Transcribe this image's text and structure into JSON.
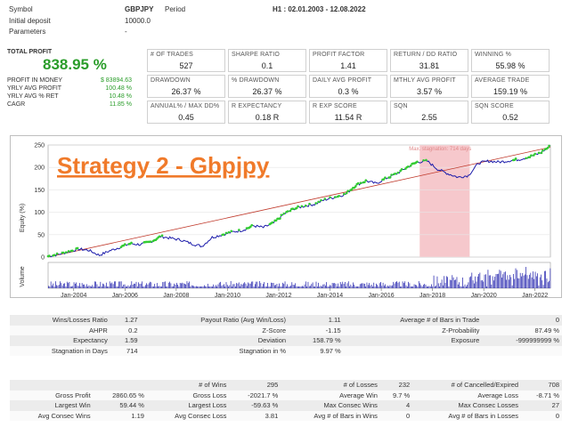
{
  "header": {
    "symbol_label": "Symbol",
    "symbol_value": "GBPJPY",
    "period_label": "Period",
    "period_value": "H1 : 02.01.2003 - 12.08.2022",
    "deposit_label": "Initial deposit",
    "deposit_value": "10000.0",
    "params_label": "Parameters",
    "params_value": "-"
  },
  "summary": {
    "total_profit_label": "TOTAL PROFIT",
    "total_profit_value": "838.95 %",
    "rows": [
      {
        "label": "PROFIT IN MONEY",
        "value": "$ 83894.63"
      },
      {
        "label": "YRLY AVG PROFIT",
        "value": "100.48 %"
      },
      {
        "label": "YRLY AVG % RET",
        "value": "10.48 %"
      },
      {
        "label": "CAGR",
        "value": "11.85 %"
      }
    ]
  },
  "metrics": [
    [
      {
        "title": "# OF TRADES",
        "value": "527"
      },
      {
        "title": "SHARPE RATIO",
        "value": "0.1"
      },
      {
        "title": "PROFIT FACTOR",
        "value": "1.41"
      },
      {
        "title": "RETURN / DD RATIO",
        "value": "31.81"
      },
      {
        "title": "WINNING %",
        "value": "55.98 %"
      }
    ],
    [
      {
        "title": "DRAWDOWN",
        "value": "26.37 %"
      },
      {
        "title": "% DRAWDOWN",
        "value": "26.37 %"
      },
      {
        "title": "DAILY AVG PROFIT",
        "value": "0.3 %"
      },
      {
        "title": "MTHLY AVG PROFIT",
        "value": "3.57 %"
      },
      {
        "title": "AVERAGE TRADE",
        "value": "159.19 %"
      }
    ],
    [
      {
        "title": "ANNUAL% / MAX DD%",
        "value": "0.45"
      },
      {
        "title": "R EXPECTANCY",
        "value": "0.18 R"
      },
      {
        "title": "R EXP SCORE",
        "value": "11.54 R"
      },
      {
        "title": "SQN",
        "value": "2.55"
      },
      {
        "title": "SQN SCORE",
        "value": "0.52"
      }
    ]
  ],
  "chart_data": {
    "type": "line",
    "overlay_title": "Strategy 2 - Gbpjpy",
    "ylabel": "Equity (%)",
    "volume_label": "Volume",
    "stagnation_label": "Max. stagnation: 714 days",
    "ylim": [
      0,
      250
    ],
    "yticks": [
      "0",
      "50",
      "100",
      "150",
      "200",
      "250"
    ],
    "xticks": [
      "Jan-2004",
      "Jan-2006",
      "Jan-2008",
      "Jan-2010",
      "Jan-2012",
      "Jan-2014",
      "Jan-2016",
      "Jan-2018",
      "Jan-2020",
      "Jan-2022"
    ],
    "xrange": [
      2003.0,
      2022.6
    ],
    "stagnation_range": [
      2017.5,
      2019.45
    ],
    "equity": {
      "x": [
        2003.0,
        2003.4,
        2003.8,
        2004.2,
        2004.6,
        2005.0,
        2005.4,
        2005.8,
        2006.2,
        2006.6,
        2007.0,
        2007.4,
        2007.8,
        2008.2,
        2008.6,
        2009.0,
        2009.4,
        2009.8,
        2010.2,
        2010.6,
        2011.0,
        2011.4,
        2011.8,
        2012.2,
        2012.6,
        2013.0,
        2013.4,
        2013.8,
        2014.2,
        2014.6,
        2015.0,
        2015.4,
        2015.8,
        2016.2,
        2016.6,
        2017.0,
        2017.4,
        2017.8,
        2018.2,
        2018.6,
        2019.0,
        2019.4,
        2019.8,
        2020.2,
        2020.6,
        2021.0,
        2021.4,
        2021.8,
        2022.2,
        2022.6
      ],
      "y": [
        2,
        6,
        12,
        18,
        15,
        4,
        14,
        22,
        30,
        28,
        34,
        46,
        42,
        38,
        30,
        24,
        44,
        50,
        56,
        60,
        70,
        66,
        76,
        96,
        108,
        114,
        118,
        128,
        134,
        140,
        160,
        170,
        164,
        176,
        186,
        200,
        212,
        214,
        196,
        186,
        178,
        182,
        210,
        214,
        212,
        215,
        218,
        224,
        232,
        248
      ]
    },
    "trend": {
      "x": [
        2003.0,
        2022.6
      ],
      "y": [
        0,
        245
      ]
    }
  },
  "stats1": [
    [
      "Wins/Losses Ratio",
      "1.27",
      "Payout Ratio (Avg Win/Loss)",
      "1.11",
      "Average # of Bars in Trade",
      "0"
    ],
    [
      "AHPR",
      "0.2",
      "Z-Score",
      "-1.15",
      "Z-Probability",
      "87.49 %"
    ],
    [
      "Expectancy",
      "1.59",
      "Deviation",
      "158.79 %",
      "Exposure",
      "-999999999 %"
    ],
    [
      "Stagnation in Days",
      "714",
      "Stagnation in %",
      "9.97 %",
      "",
      ""
    ]
  ],
  "stats2": [
    [
      "",
      "",
      "# of Wins",
      "295",
      "# of Losses",
      "232",
      "# of Cancelled/Expired",
      "708"
    ],
    [
      "Gross Profit",
      "2860.65 %",
      "Gross Loss",
      "-2021.7 %",
      "Average Win",
      "9.7 %",
      "Average Loss",
      "-8.71 %"
    ],
    [
      "Largest Win",
      "59.44 %",
      "Largest Loss",
      "-59.63 %",
      "Max Consec Wins",
      "4",
      "Max Consec Losses",
      "27"
    ],
    [
      "Avg Consec Wins",
      "1.19",
      "Avg Consec Loss",
      "3.81",
      "Avg # of Bars in Wins",
      "0",
      "Avg # of Bars in Losses",
      "0"
    ]
  ],
  "colors": {
    "equity_line": "#1a1aaa",
    "trend_line": "#c0392b",
    "stagnation_fill": "#f6c8cc",
    "overlay_title": "#f07a2a",
    "profit_green": "#2a9d2a",
    "volume_bar": "#1a1aaa"
  }
}
